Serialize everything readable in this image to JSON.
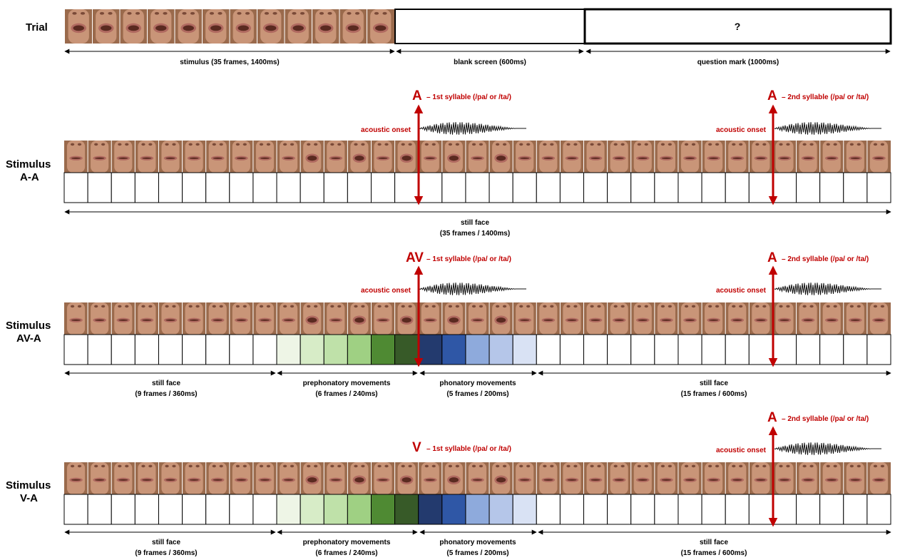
{
  "colors": {
    "accent_red": "#c00000",
    "skin_bg": "#9a6a4c",
    "skin_light": "#c99578",
    "mouth": "#5a2a20",
    "prephonatory_greens": [
      "#eef5e6",
      "#d7ecc7",
      "#bfe1a9",
      "#9fd083",
      "#4f8a33",
      "#375a28"
    ],
    "phonatory_blues": [
      "#233a6e",
      "#2f57a6",
      "#8eaadc",
      "#b5c6e9",
      "#d9e2f4"
    ]
  },
  "icons": [
    "face-frame-icon",
    "waveform-icon",
    "double-arrow-icon"
  ],
  "trial": {
    "label": "Trial",
    "question_symbol": "?",
    "segments": [
      {
        "label": "stimulus (35 frames, 1400ms)"
      },
      {
        "label": "blank screen (600ms)"
      },
      {
        "label": "question mark (1000ms)"
      }
    ]
  },
  "stimuli": [
    {
      "label_line1": "Stimulus",
      "label_line2": "A-A",
      "first_marker": {
        "letter": "A",
        "text": "– 1st syllable (/pa/ or /ta/)"
      },
      "second_marker": {
        "letter": "A",
        "text": "– 2nd syllable (/pa/ or /ta/)"
      },
      "acoustic_onset_1": "acoustic onset",
      "acoustic_onset_2": "acoustic onset",
      "phases": [
        {
          "line1": "still face",
          "line2": "(35 frames / 1400ms)"
        }
      ]
    },
    {
      "label_line1": "Stimulus",
      "label_line2": "AV-A",
      "first_marker": {
        "letter": "AV",
        "text": "– 1st syllable (/pa/ or /ta/)"
      },
      "second_marker": {
        "letter": "A",
        "text": "– 2nd syllable (/pa/ or /ta/)"
      },
      "acoustic_onset_1": "acoustic onset",
      "acoustic_onset_2": "acoustic onset",
      "phases": [
        {
          "line1": "still face",
          "line2": "(9 frames / 360ms)"
        },
        {
          "line1": "prephonatory movements",
          "line2": "(6 frames / 240ms)"
        },
        {
          "line1": "phonatory movements",
          "line2": "(5 frames / 200ms)"
        },
        {
          "line1": "still face",
          "line2": "(15 frames / 600ms)"
        }
      ]
    },
    {
      "label_line1": "Stimulus",
      "label_line2": "V-A",
      "first_marker": {
        "letter": "V",
        "text": "– 1st syllable (/pa/ or /ta/)"
      },
      "second_marker": {
        "letter": "A",
        "text": "– 2nd syllable (/pa/ or /ta/)"
      },
      "acoustic_onset_2": "acoustic onset",
      "phases": [
        {
          "line1": "still face",
          "line2": "(9 frames / 360ms)"
        },
        {
          "line1": "prephonatory movements",
          "line2": "(6 frames / 240ms)"
        },
        {
          "line1": "phonatory movements",
          "line2": "(5 frames / 200ms)"
        },
        {
          "line1": "still face",
          "line2": "(15 frames / 600ms)"
        }
      ]
    }
  ]
}
